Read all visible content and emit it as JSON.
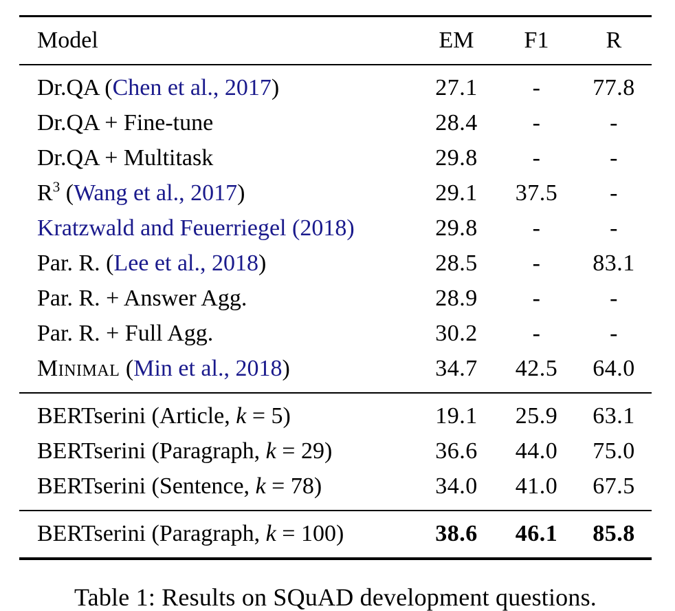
{
  "colors": {
    "link": "#1a1a8c",
    "text": "#000000",
    "rule": "#000000",
    "background": "#ffffff"
  },
  "caption": "Table 1: Results on SQuAD development questions.",
  "table": {
    "header": {
      "model": "Model",
      "em": "EM",
      "f1": "F1",
      "r": "R"
    },
    "sections": [
      {
        "name": "prior-work",
        "rows": [
          {
            "model": [
              {
                "t": "Dr.QA ("
              },
              {
                "t": "Chen et al., 2017",
                "s": "link"
              },
              {
                "t": ")"
              }
            ],
            "em": "27.1",
            "f1": "-",
            "r": "77.8",
            "bold": false
          },
          {
            "model": [
              {
                "t": "Dr.QA + Fine-tune"
              }
            ],
            "em": "28.4",
            "f1": "-",
            "r": "-",
            "bold": false
          },
          {
            "model": [
              {
                "t": "Dr.QA + Multitask"
              }
            ],
            "em": "29.8",
            "f1": "-",
            "r": "-",
            "bold": false
          },
          {
            "model": [
              {
                "t": "R"
              },
              {
                "t": "3",
                "s": "sup"
              },
              {
                "t": " ("
              },
              {
                "t": "Wang et al., 2017",
                "s": "link"
              },
              {
                "t": ")"
              }
            ],
            "em": "29.1",
            "f1": "37.5",
            "r": "-",
            "bold": false
          },
          {
            "model": [
              {
                "t": "Kratzwald and Feuerriegel (2018)",
                "s": "link"
              }
            ],
            "em": "29.8",
            "f1": "-",
            "r": "-",
            "bold": false
          },
          {
            "model": [
              {
                "t": "Par. R. ("
              },
              {
                "t": "Lee et al., 2018",
                "s": "link"
              },
              {
                "t": ")"
              }
            ],
            "em": "28.5",
            "f1": "-",
            "r": "83.1",
            "bold": false
          },
          {
            "model": [
              {
                "t": "Par. R. + Answer Agg."
              }
            ],
            "em": "28.9",
            "f1": "-",
            "r": "-",
            "bold": false
          },
          {
            "model": [
              {
                "t": "Par. R. + Full Agg."
              }
            ],
            "em": "30.2",
            "f1": "-",
            "r": "-",
            "bold": false
          },
          {
            "model": [
              {
                "t": "Minimal",
                "s": "sc"
              },
              {
                "t": " ("
              },
              {
                "t": "Min et al., 2018",
                "s": "link"
              },
              {
                "t": ")"
              }
            ],
            "em": "34.7",
            "f1": "42.5",
            "r": "64.0",
            "bold": false
          }
        ]
      },
      {
        "name": "bertserini-granularity",
        "rows": [
          {
            "model": [
              {
                "t": "BERTserini (Article, "
              },
              {
                "t": "k",
                "s": "i"
              },
              {
                "t": " = 5)"
              }
            ],
            "em": "19.1",
            "f1": "25.9",
            "r": "63.1",
            "bold": false
          },
          {
            "model": [
              {
                "t": "BERTserini (Paragraph, "
              },
              {
                "t": "k",
                "s": "i"
              },
              {
                "t": " = 29)"
              }
            ],
            "em": "36.6",
            "f1": "44.0",
            "r": "75.0",
            "bold": false
          },
          {
            "model": [
              {
                "t": "BERTserini (Sentence, "
              },
              {
                "t": "k",
                "s": "i"
              },
              {
                "t": " = 78)"
              }
            ],
            "em": "34.0",
            "f1": "41.0",
            "r": "67.5",
            "bold": false
          }
        ]
      },
      {
        "name": "bertserini-best",
        "rows": [
          {
            "model": [
              {
                "t": "BERTserini (Paragraph, "
              },
              {
                "t": "k",
                "s": "i"
              },
              {
                "t": " = 100)"
              }
            ],
            "em": "38.6",
            "f1": "46.1",
            "r": "85.8",
            "bold": true
          }
        ]
      }
    ]
  }
}
